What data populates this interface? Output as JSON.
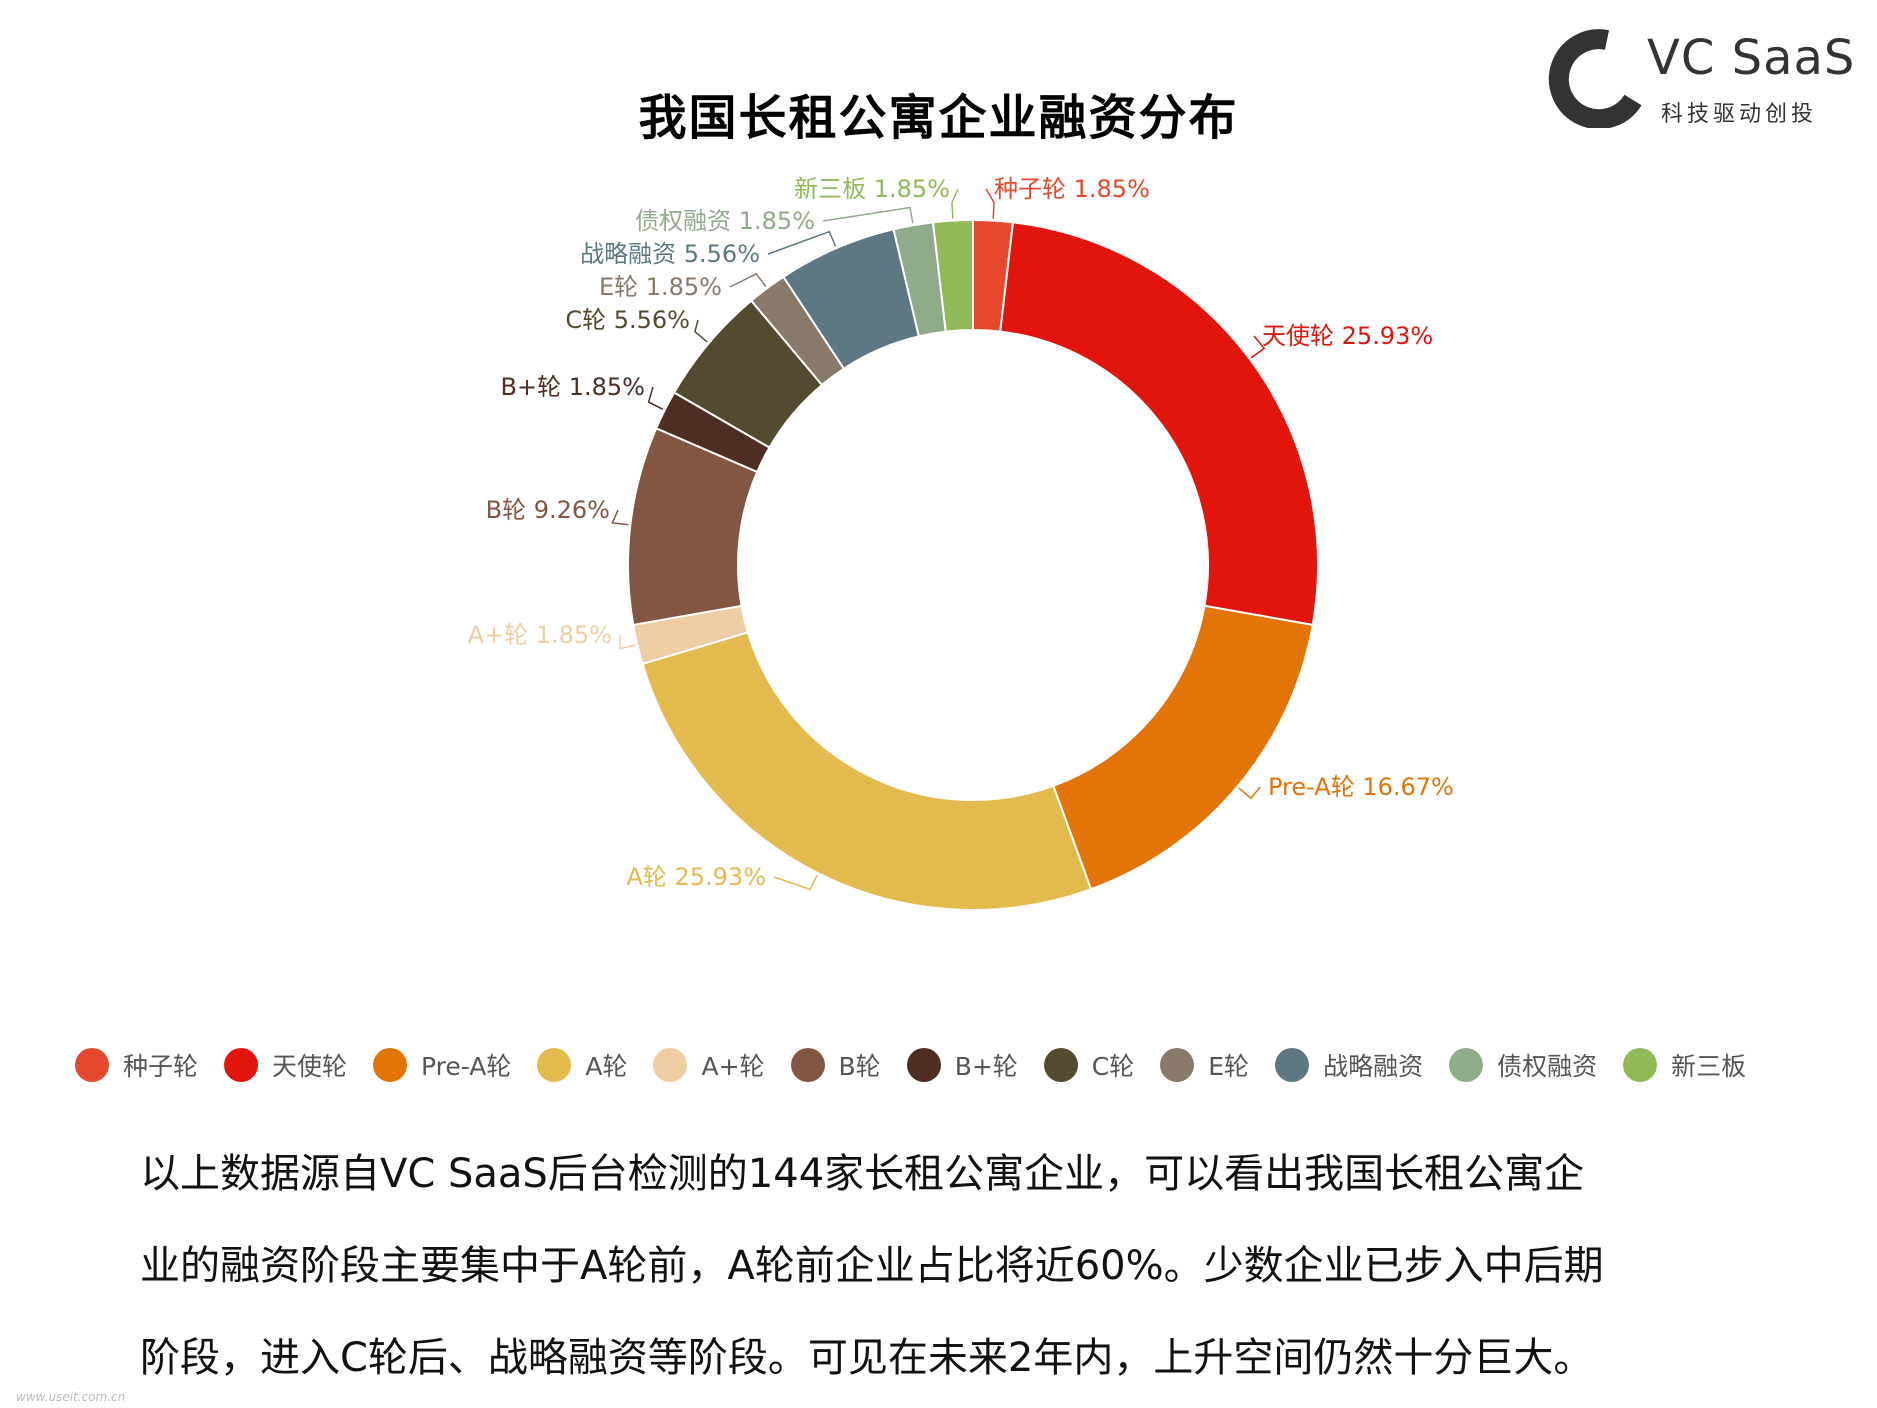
{
  "title": "我国长租公寓企业融资分布",
  "logo": {
    "name": "VC SaaS",
    "tagline": "科技驱动创投",
    "icon": "c-arc-logo-icon"
  },
  "chart_data": {
    "type": "pie",
    "donut": true,
    "title": "我国长租公寓企业融资分布",
    "legend_position": "bottom",
    "start_angle_deg": 0,
    "direction": "clockwise",
    "slices": [
      {
        "name": "种子轮",
        "value": 1.85,
        "label": "种子轮 1.85%",
        "color": "#e6482e"
      },
      {
        "name": "天使轮",
        "value": 25.93,
        "label": "天使轮 25.93%",
        "color": "#e2150c"
      },
      {
        "name": "Pre-A轮",
        "value": 16.67,
        "label": "Pre-A轮 16.67%",
        "color": "#e37508"
      },
      {
        "name": "A轮",
        "value": 25.93,
        "label": "A轮 25.93%",
        "color": "#e3ba4e"
      },
      {
        "name": "A+轮",
        "value": 1.85,
        "label": "A+轮 1.85%",
        "color": "#efcda3"
      },
      {
        "name": "B轮",
        "value": 9.26,
        "label": "B轮 9.26%",
        "color": "#825642"
      },
      {
        "name": "B+轮",
        "value": 1.85,
        "label": "B+轮 1.85%",
        "color": "#4e2d22"
      },
      {
        "name": "C轮",
        "value": 5.56,
        "label": "C轮 5.56%",
        "color": "#544a30"
      },
      {
        "name": "E轮",
        "value": 1.85,
        "label": "E轮 1.85%",
        "color": "#88796a"
      },
      {
        "name": "战略融资",
        "value": 5.56,
        "label": "战略融资 5.56%",
        "color": "#5d7882"
      },
      {
        "name": "债权融资",
        "value": 1.85,
        "label": "债权融资 1.85%",
        "color": "#90ab8a"
      },
      {
        "name": "新三板",
        "value": 1.85,
        "label": "新三板 1.85%",
        "color": "#92b958"
      }
    ]
  },
  "legend": [
    "种子轮",
    "天使轮",
    "Pre-A轮",
    "A轮",
    "A+轮",
    "B轮",
    "B+轮",
    "C轮",
    "E轮",
    "战略融资",
    "债权融资",
    "新三板"
  ],
  "description": [
    "以上数据源自VC SaaS后台检测的144家长租公寓企业，可以看出我国长租公寓企",
    "业的融资阶段主要集中于A轮前，A轮前企业占比将近60%。少数企业已步入中后期",
    "阶段，进入C轮后、战略融资等阶段。可见在未来2年内，上升空间仍然十分巨大。"
  ],
  "watermark": "www.useit.com.cn"
}
